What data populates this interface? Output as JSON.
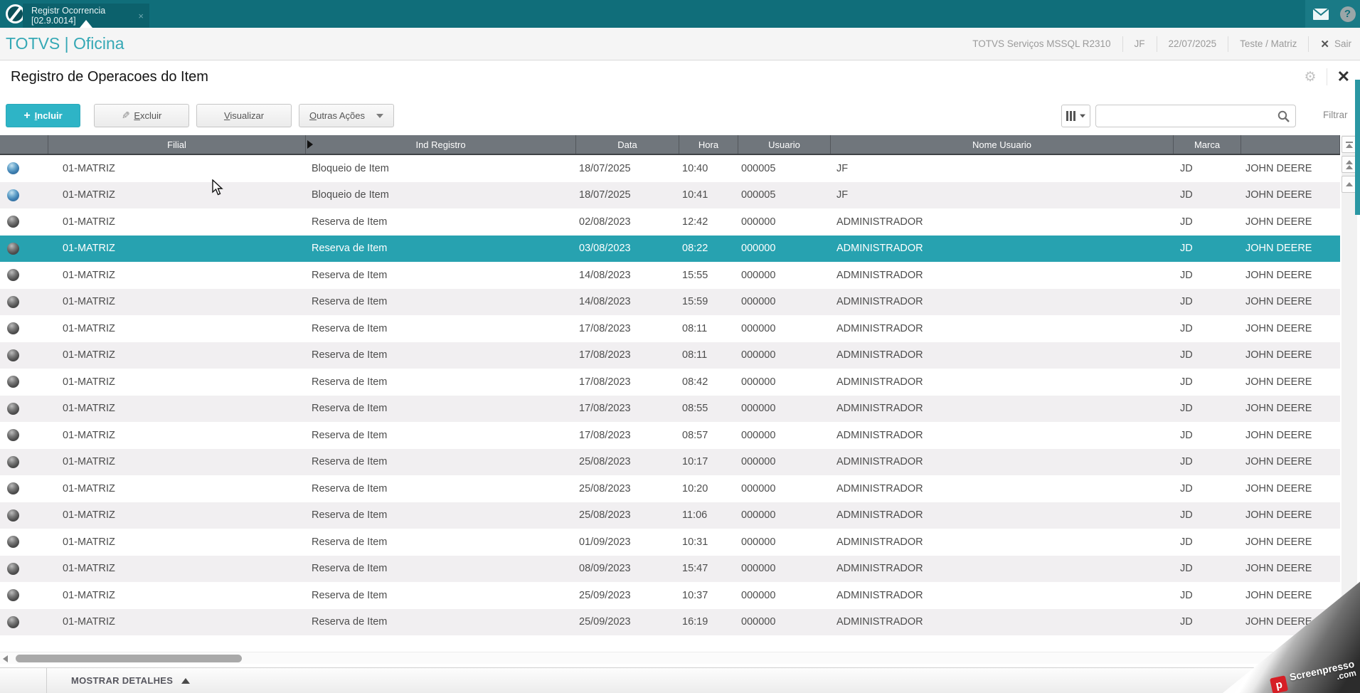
{
  "topbar": {
    "tab_title": "Registr Ocorrencia [02.9.0014]",
    "tab_close": "×"
  },
  "header": {
    "brand": "TOTVS | Oficina",
    "environment": "TOTVS Serviços MSSQL R2310",
    "user": "JF",
    "date": "22/07/2025",
    "company": "Teste / Matriz",
    "logout_label": "Sair"
  },
  "page": {
    "title": "Registro de Operacoes do Item"
  },
  "toolbar": {
    "incluir": "Incluir",
    "excluir": "Excluir",
    "visualizar": "Visualizar",
    "outras_acoes": "Outras Ações",
    "filtrar": "Filtrar",
    "search_value": ""
  },
  "grid": {
    "columns": [
      "",
      "Filial",
      "Ind Registro",
      "Data",
      "Hora",
      "Usuario",
      "Nome Usuario",
      "Marca",
      ""
    ],
    "rows": [
      {
        "icon": "blue",
        "selected": false,
        "filial": "01-MATRIZ",
        "ind": "Bloqueio de Item",
        "data": "18/07/2025",
        "hora": "10:40",
        "usuario": "000005",
        "nome": "JF",
        "marca": "JD",
        "nome_marca": "JOHN DEERE"
      },
      {
        "icon": "blue",
        "selected": false,
        "filial": "01-MATRIZ",
        "ind": "Bloqueio de Item",
        "data": "18/07/2025",
        "hora": "10:41",
        "usuario": "000005",
        "nome": "JF",
        "marca": "JD",
        "nome_marca": "JOHN DEERE"
      },
      {
        "icon": "gray",
        "selected": false,
        "filial": "01-MATRIZ",
        "ind": "Reserva de Item",
        "data": "02/08/2023",
        "hora": "12:42",
        "usuario": "000000",
        "nome": "ADMINISTRADOR",
        "marca": "JD",
        "nome_marca": "JOHN DEERE"
      },
      {
        "icon": "gray",
        "selected": true,
        "filial": "01-MATRIZ",
        "ind": "Reserva de Item",
        "data": "03/08/2023",
        "hora": "08:22",
        "usuario": "000000",
        "nome": "ADMINISTRADOR",
        "marca": "JD",
        "nome_marca": "JOHN DEERE"
      },
      {
        "icon": "gray",
        "selected": false,
        "filial": "01-MATRIZ",
        "ind": "Reserva de Item",
        "data": "14/08/2023",
        "hora": "15:55",
        "usuario": "000000",
        "nome": "ADMINISTRADOR",
        "marca": "JD",
        "nome_marca": "JOHN DEERE"
      },
      {
        "icon": "gray",
        "selected": false,
        "filial": "01-MATRIZ",
        "ind": "Reserva de Item",
        "data": "14/08/2023",
        "hora": "15:59",
        "usuario": "000000",
        "nome": "ADMINISTRADOR",
        "marca": "JD",
        "nome_marca": "JOHN DEERE"
      },
      {
        "icon": "gray",
        "selected": false,
        "filial": "01-MATRIZ",
        "ind": "Reserva de Item",
        "data": "17/08/2023",
        "hora": "08:11",
        "usuario": "000000",
        "nome": "ADMINISTRADOR",
        "marca": "JD",
        "nome_marca": "JOHN DEERE"
      },
      {
        "icon": "gray",
        "selected": false,
        "filial": "01-MATRIZ",
        "ind": "Reserva de Item",
        "data": "17/08/2023",
        "hora": "08:11",
        "usuario": "000000",
        "nome": "ADMINISTRADOR",
        "marca": "JD",
        "nome_marca": "JOHN DEERE"
      },
      {
        "icon": "gray",
        "selected": false,
        "filial": "01-MATRIZ",
        "ind": "Reserva de Item",
        "data": "17/08/2023",
        "hora": "08:42",
        "usuario": "000000",
        "nome": "ADMINISTRADOR",
        "marca": "JD",
        "nome_marca": "JOHN DEERE"
      },
      {
        "icon": "gray",
        "selected": false,
        "filial": "01-MATRIZ",
        "ind": "Reserva de Item",
        "data": "17/08/2023",
        "hora": "08:55",
        "usuario": "000000",
        "nome": "ADMINISTRADOR",
        "marca": "JD",
        "nome_marca": "JOHN DEERE"
      },
      {
        "icon": "gray",
        "selected": false,
        "filial": "01-MATRIZ",
        "ind": "Reserva de Item",
        "data": "17/08/2023",
        "hora": "08:57",
        "usuario": "000000",
        "nome": "ADMINISTRADOR",
        "marca": "JD",
        "nome_marca": "JOHN DEERE"
      },
      {
        "icon": "gray",
        "selected": false,
        "filial": "01-MATRIZ",
        "ind": "Reserva de Item",
        "data": "25/08/2023",
        "hora": "10:17",
        "usuario": "000000",
        "nome": "ADMINISTRADOR",
        "marca": "JD",
        "nome_marca": "JOHN DEERE"
      },
      {
        "icon": "gray",
        "selected": false,
        "filial": "01-MATRIZ",
        "ind": "Reserva de Item",
        "data": "25/08/2023",
        "hora": "10:20",
        "usuario": "000000",
        "nome": "ADMINISTRADOR",
        "marca": "JD",
        "nome_marca": "JOHN DEERE"
      },
      {
        "icon": "gray",
        "selected": false,
        "filial": "01-MATRIZ",
        "ind": "Reserva de Item",
        "data": "25/08/2023",
        "hora": "11:06",
        "usuario": "000000",
        "nome": "ADMINISTRADOR",
        "marca": "JD",
        "nome_marca": "JOHN DEERE"
      },
      {
        "icon": "gray",
        "selected": false,
        "filial": "01-MATRIZ",
        "ind": "Reserva de Item",
        "data": "01/09/2023",
        "hora": "10:31",
        "usuario": "000000",
        "nome": "ADMINISTRADOR",
        "marca": "JD",
        "nome_marca": "JOHN DEERE"
      },
      {
        "icon": "gray",
        "selected": false,
        "filial": "01-MATRIZ",
        "ind": "Reserva de Item",
        "data": "08/09/2023",
        "hora": "15:47",
        "usuario": "000000",
        "nome": "ADMINISTRADOR",
        "marca": "JD",
        "nome_marca": "JOHN DEERE"
      },
      {
        "icon": "gray",
        "selected": false,
        "filial": "01-MATRIZ",
        "ind": "Reserva de Item",
        "data": "25/09/2023",
        "hora": "10:37",
        "usuario": "000000",
        "nome": "ADMINISTRADOR",
        "marca": "JD",
        "nome_marca": "JOHN DEERE"
      },
      {
        "icon": "gray",
        "selected": false,
        "filial": "01-MATRIZ",
        "ind": "Reserva de Item",
        "data": "25/09/2023",
        "hora": "16:19",
        "usuario": "000000",
        "nome": "ADMINISTRADOR",
        "marca": "JD",
        "nome_marca": "JOHN DEERE"
      }
    ]
  },
  "footer": {
    "mostrar_detalhes": "MOSTRAR DETALHES"
  },
  "watermark": {
    "brand": "Screenpresso",
    "domain": ".com",
    "logo_letter": "p"
  },
  "colors": {
    "topbar_teal": "#106e7a",
    "brand_teal": "#35a8b5",
    "button_teal": "#2eb4c6",
    "selected_row_teal": "#27a2b0",
    "grid_header_gray": "#70767c",
    "watermark_red": "#d61f26"
  }
}
